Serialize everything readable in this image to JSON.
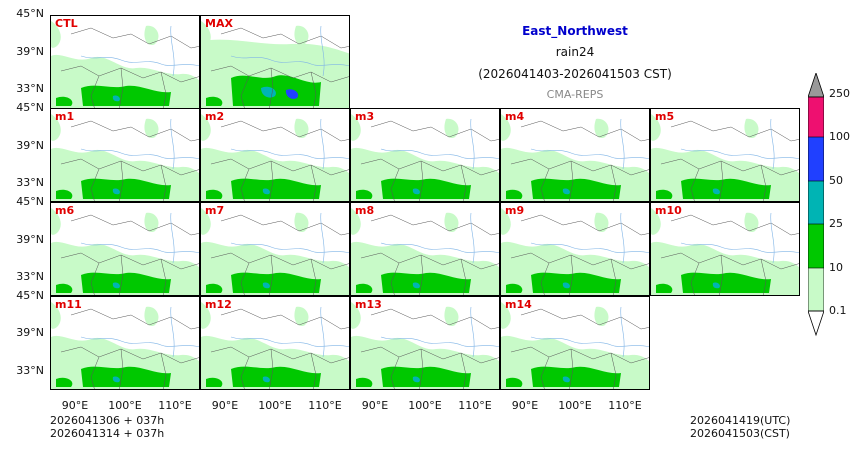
{
  "header": {
    "region": "East_Northwest",
    "variable": "rain24",
    "period": "(2026041403-2026041503 CST)",
    "model": "CMA-REPS"
  },
  "panels": [
    {
      "label": "CTL"
    },
    {
      "label": "MAX"
    },
    {
      "label": "m1"
    },
    {
      "label": "m2"
    },
    {
      "label": "m3"
    },
    {
      "label": "m4"
    },
    {
      "label": "m5"
    },
    {
      "label": "m6"
    },
    {
      "label": "m7"
    },
    {
      "label": "m8"
    },
    {
      "label": "m9"
    },
    {
      "label": "m10"
    },
    {
      "label": "m11"
    },
    {
      "label": "m12"
    },
    {
      "label": "m13"
    },
    {
      "label": "m14"
    }
  ],
  "axes": {
    "lat_ticks": [
      "45°N",
      "39°N",
      "33°N"
    ],
    "lon_ticks": [
      "90°E",
      "100°E",
      "110°E"
    ]
  },
  "colorbar": {
    "levels": [
      "0.1",
      "10",
      "25",
      "50",
      "100",
      "250"
    ],
    "colors": [
      "#c8fac8",
      "#00c800",
      "#00b4b4",
      "#2040ff",
      "#ee1070"
    ],
    "under_color": "#ffffff",
    "over_color": "#999999"
  },
  "footer": {
    "init_utc_line": "2026041306  +  037h",
    "init_cst_line": "2026041314  +  037h",
    "valid_utc": "2026041419(UTC)",
    "valid_cst": "2026041503(CST)"
  },
  "colors": {
    "accent_title": "#0000cc",
    "panel_label": "#e00000",
    "model_label": "#888888"
  }
}
